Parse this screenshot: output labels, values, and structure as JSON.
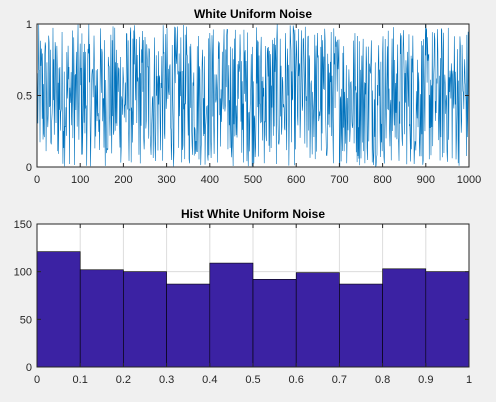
{
  "chart_data": [
    {
      "type": "line",
      "title": "White Uniform Noise",
      "xlabel": "",
      "ylabel": "",
      "xlim": [
        0,
        1000
      ],
      "ylim": [
        0,
        1
      ],
      "xticks": [
        0,
        100,
        200,
        300,
        400,
        500,
        600,
        700,
        800,
        900,
        1000
      ],
      "xtick_labels": [
        "0",
        "100",
        "200",
        "300",
        "400",
        "500",
        "600",
        "700",
        "800",
        "900",
        "1000"
      ],
      "yticks": [
        0,
        0.5,
        1
      ],
      "ytick_labels": [
        "0",
        "0.5",
        "1"
      ],
      "grid": false,
      "series": [
        {
          "color": "#0072bd",
          "n_points": 1000,
          "distribution": "uniform(0,1)"
        }
      ]
    },
    {
      "type": "bar",
      "title": "Hist White Uniform Noise",
      "xlabel": "",
      "ylabel": "",
      "xlim": [
        0,
        1
      ],
      "ylim": [
        0,
        150
      ],
      "bin_edges": [
        0,
        0.1,
        0.2,
        0.3,
        0.4,
        0.5,
        0.6,
        0.7,
        0.8,
        0.9,
        1.0
      ],
      "values": [
        121,
        102,
        100,
        87,
        109,
        92,
        99,
        87,
        103,
        100
      ],
      "xticks": [
        0,
        0.1,
        0.2,
        0.3,
        0.4,
        0.5,
        0.6,
        0.7,
        0.8,
        0.9,
        1
      ],
      "xtick_labels": [
        "0",
        "0.1",
        "0.2",
        "0.3",
        "0.4",
        "0.5",
        "0.6",
        "0.7",
        "0.8",
        "0.9",
        "1"
      ],
      "yticks": [
        0,
        50,
        100,
        150
      ],
      "ytick_labels": [
        "0",
        "50",
        "100",
        "150"
      ],
      "grid": true,
      "bar_color": "#3b22a3",
      "edge_color": "#000000"
    }
  ]
}
